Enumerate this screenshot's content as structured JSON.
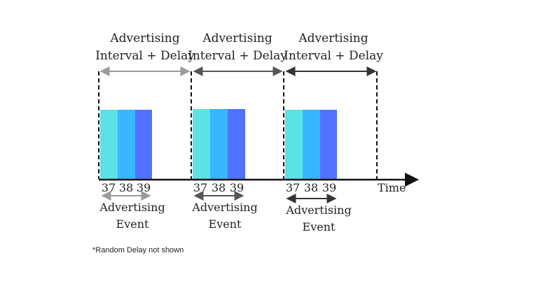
{
  "intervals": [
    {
      "line1": "Advertising",
      "line2": "Interval + Delay",
      "arrow_color": "#9a9a9a"
    },
    {
      "line1": "Advertising",
      "line2": "Interval + Delay",
      "arrow_color": "#555555"
    },
    {
      "line1": "Advertising",
      "line2": "Interval + Delay",
      "arrow_color": "#333333"
    }
  ],
  "events": [
    {
      "channels": [
        "37",
        "38",
        "39"
      ],
      "label1": "Advertising",
      "label2": "Event",
      "arrow_color": "#9a9a9a"
    },
    {
      "channels": [
        "37",
        "38",
        "39"
      ],
      "label1": "Advertising",
      "label2": "Event",
      "arrow_color": "#555555"
    },
    {
      "channels": [
        "37",
        "38",
        "39"
      ],
      "label1": "Advertising",
      "label2": "Event",
      "arrow_color": "#333333"
    }
  ],
  "channel_colors": [
    "#5ce1e6",
    "#38b6ff",
    "#5271ff"
  ],
  "time_label": "Time",
  "footnote": "*Random Delay not shown"
}
